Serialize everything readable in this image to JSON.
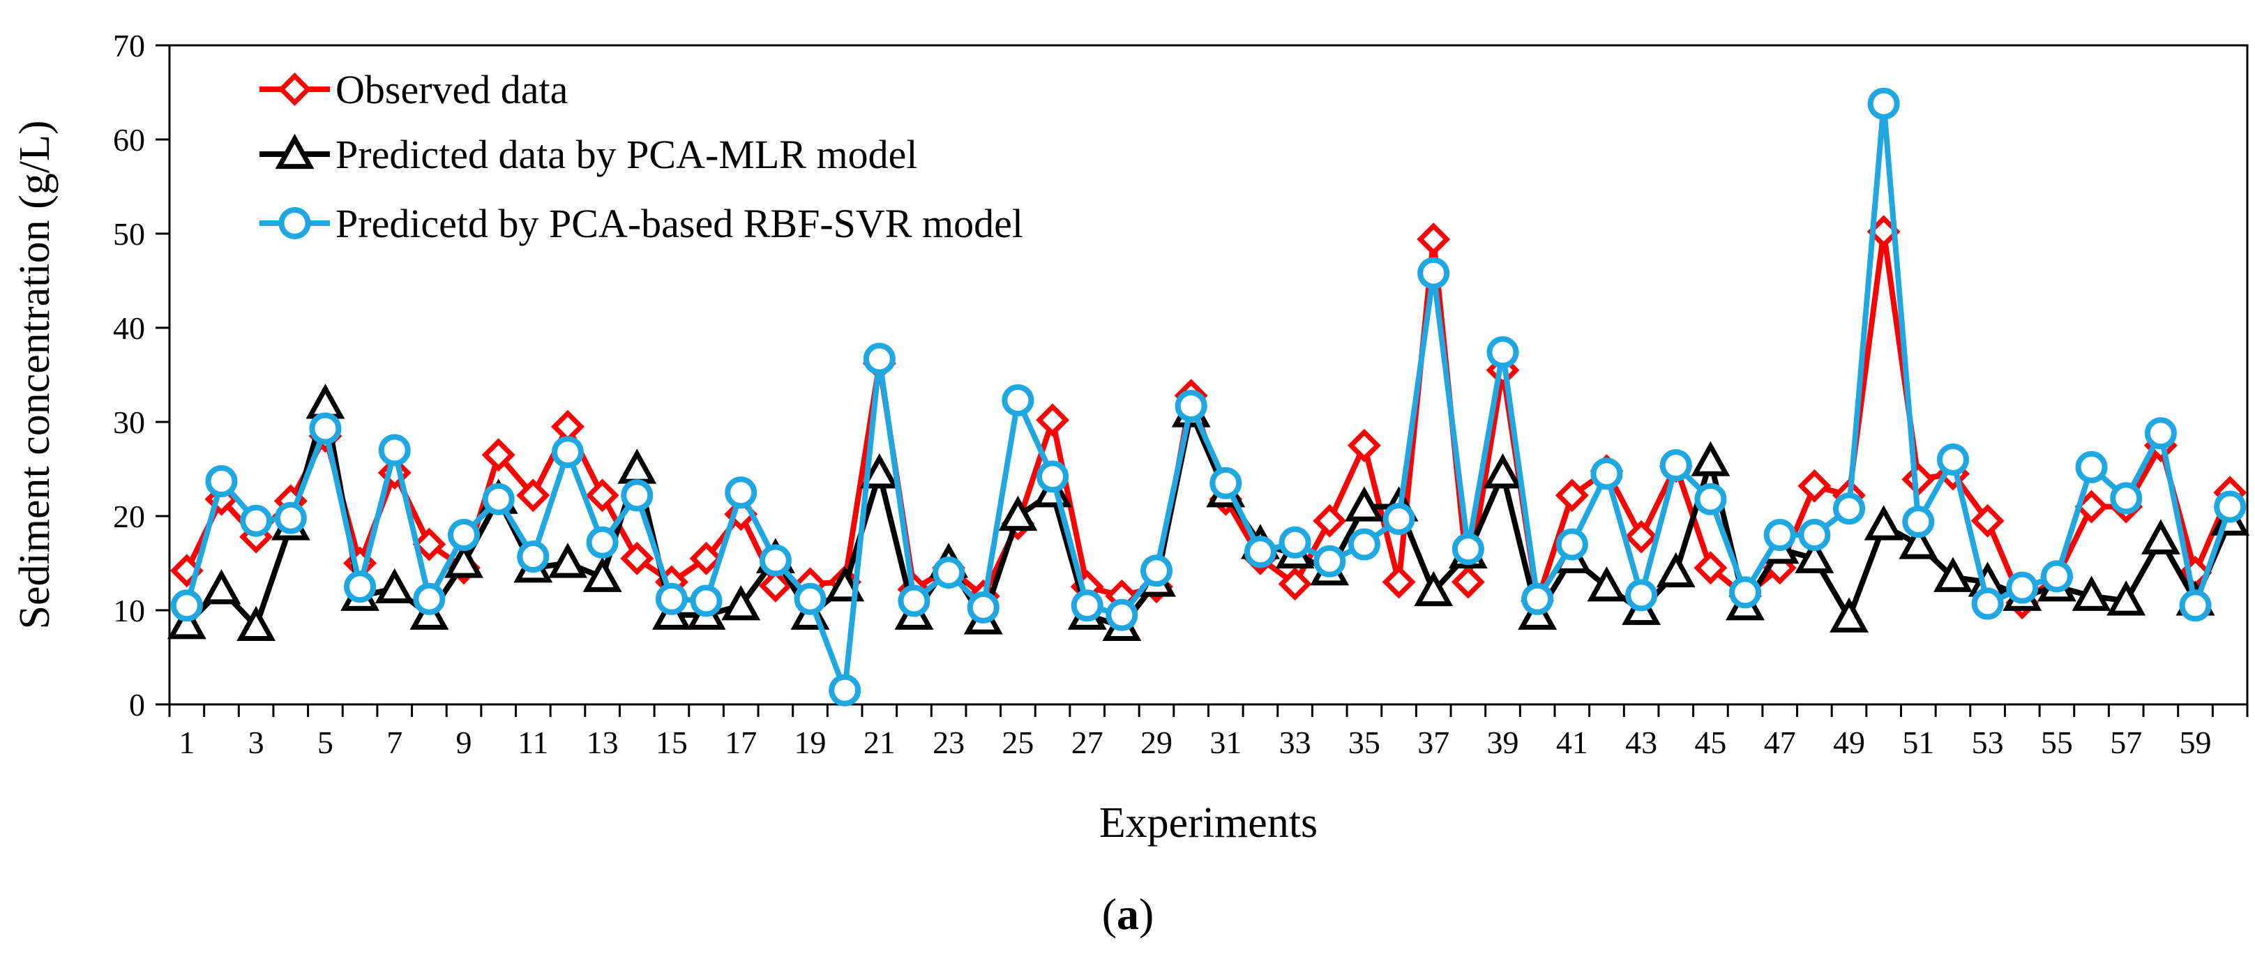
{
  "chart_data": {
    "type": "line",
    "title": "",
    "panel_label_open": "(",
    "panel_label_letter": "a",
    "panel_label_close": ")",
    "xlabel": "Experiments",
    "ylabel": "Sediment  concentration  (g/L)",
    "ylim": [
      0,
      70
    ],
    "y_ticks": [
      0,
      10,
      20,
      30,
      40,
      50,
      60,
      70
    ],
    "xlim": [
      0.5,
      60.5
    ],
    "x_tick_labels": [
      1,
      3,
      5,
      7,
      9,
      11,
      13,
      15,
      17,
      19,
      21,
      23,
      25,
      27,
      29,
      31,
      33,
      35,
      37,
      39,
      41,
      43,
      45,
      47,
      49,
      51,
      53,
      55,
      57,
      59
    ],
    "grid": false,
    "legend_position": "top-left",
    "x": [
      1,
      2,
      3,
      4,
      5,
      6,
      7,
      8,
      9,
      10,
      11,
      12,
      13,
      14,
      15,
      16,
      17,
      18,
      19,
      20,
      21,
      22,
      23,
      24,
      25,
      26,
      27,
      28,
      29,
      30,
      31,
      32,
      33,
      34,
      35,
      36,
      37,
      38,
      39,
      40,
      41,
      42,
      43,
      44,
      45,
      46,
      47,
      48,
      49,
      50,
      51,
      52,
      53,
      54,
      55,
      56,
      57,
      58,
      59,
      60
    ],
    "series": [
      {
        "name": "Observed data",
        "color": "#ff0000",
        "marker": "diamond",
        "values": [
          14.2,
          21.8,
          17.8,
          21.6,
          28.5,
          15,
          24.6,
          17,
          14.5,
          26.5,
          22.2,
          29.5,
          22.2,
          15.5,
          13,
          15.5,
          20.2,
          12.6,
          12.8,
          13,
          36.2,
          12.2,
          14.5,
          11.5,
          19.2,
          30.2,
          12.5,
          11.5,
          12.5,
          32.8,
          21.8,
          15.5,
          12.8,
          19.5,
          27.5,
          13,
          49.4,
          13,
          35.5,
          11,
          22.2,
          24.8,
          17.8,
          25.3,
          14.5,
          11.5,
          14.5,
          23.2,
          22.2,
          50.2,
          23.9,
          24.5,
          19.5,
          10.8,
          13.5,
          21,
          21,
          27.5,
          14,
          22.5
        ]
      },
      {
        "name": "Predicted data by PCA-MLR model",
        "color": "#000000",
        "marker": "triangle",
        "values": [
          8.5,
          12.2,
          8.3,
          19,
          31.9,
          11.5,
          12.3,
          9.5,
          15,
          21.8,
          14.5,
          15,
          13.5,
          25,
          9.5,
          9.5,
          10.5,
          15.5,
          9.5,
          12.5,
          24.5,
          9.5,
          15,
          9,
          20,
          22.5,
          9.5,
          8.3,
          13,
          31,
          22.5,
          17,
          16,
          14.2,
          21,
          21,
          12,
          16,
          24.5,
          9.5,
          15.5,
          12.5,
          10,
          14,
          25.8,
          10.5,
          16.5,
          15.5,
          9.2,
          19,
          17,
          13.5,
          13,
          11.5,
          12.5,
          11.5,
          11,
          17.5,
          11,
          19.5
        ]
      },
      {
        "name": "Predicetd by PCA-based RBF-SVR model",
        "color": "#1ea7e1",
        "marker": "circle",
        "values": [
          10.5,
          23.7,
          19.5,
          19.8,
          29.3,
          12.5,
          27,
          11.2,
          18,
          21.8,
          15.7,
          26.8,
          17.2,
          22.2,
          11.2,
          11,
          22.5,
          15.3,
          11.2,
          1.5,
          36.7,
          11,
          14,
          10.3,
          32.3,
          24.2,
          10.5,
          9.5,
          14.2,
          31.7,
          23.5,
          16.2,
          17.2,
          15.2,
          17,
          19.7,
          45.8,
          16.5,
          37.4,
          11.2,
          17,
          24.5,
          11.6,
          25.4,
          21.8,
          11.9,
          18,
          18,
          20.8,
          63.8,
          19.4,
          26,
          10.7,
          12.4,
          13.6,
          25.2,
          21.9,
          28.8,
          10.5,
          21
        ]
      }
    ]
  }
}
